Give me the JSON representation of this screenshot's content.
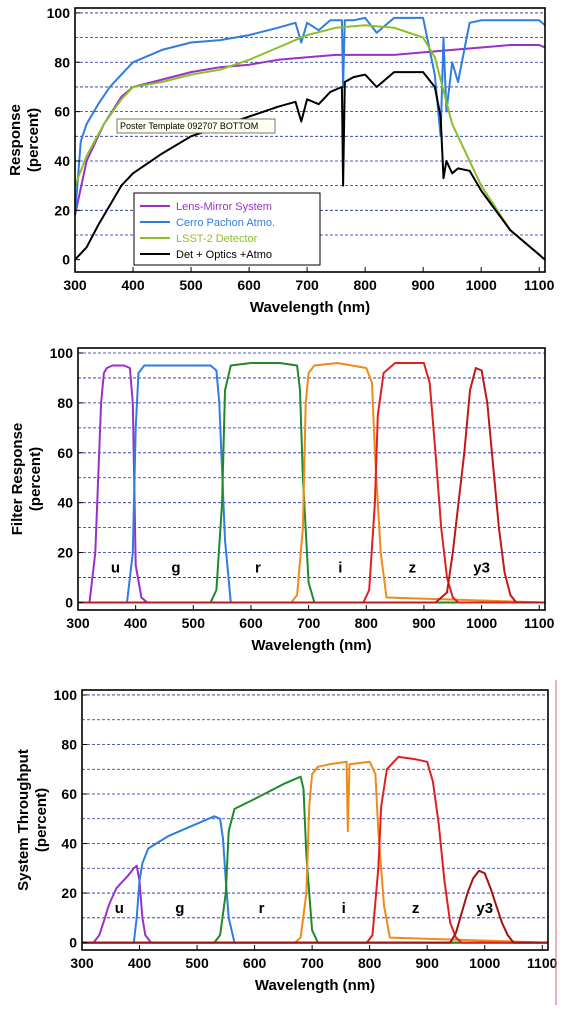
{
  "chart_data": [
    {
      "type": "line",
      "xlabel": "Wavelength (nm)",
      "ylabel_lines": [
        "Response",
        "(percent)"
      ],
      "xlim": [
        300,
        1110
      ],
      "ylim": [
        -5,
        102
      ],
      "xticks": [
        300,
        400,
        500,
        600,
        700,
        800,
        900,
        1000,
        1100
      ],
      "yticks": [
        0,
        20,
        40,
        60,
        80,
        100
      ],
      "tooltip": "Poster Template 092707 BOTTOM",
      "legend_position": "lower-left",
      "series": [
        {
          "name": "Lens-Mirror System",
          "color": "#9b30c8",
          "x": [
            300,
            320,
            350,
            380,
            400,
            450,
            500,
            550,
            600,
            650,
            700,
            750,
            800,
            850,
            900,
            950,
            1000,
            1050,
            1100,
            1110
          ],
          "y": [
            18,
            40,
            55,
            66,
            70,
            73,
            76,
            78,
            79,
            81,
            82,
            83,
            83,
            83,
            84,
            85,
            86,
            87,
            87,
            86
          ]
        },
        {
          "name": "Cerro Pachon Atmo.",
          "color": "#2f7de0",
          "x": [
            300,
            310,
            320,
            340,
            360,
            380,
            400,
            450,
            500,
            550,
            600,
            650,
            680,
            690,
            700,
            720,
            740,
            760,
            762,
            765,
            780,
            800,
            820,
            850,
            900,
            920,
            930,
            935,
            940,
            950,
            960,
            980,
            1000,
            1050,
            1100,
            1110
          ],
          "y": [
            18,
            48,
            55,
            63,
            70,
            75,
            80,
            85,
            88,
            89,
            91,
            94,
            96,
            88,
            96,
            93,
            97,
            97,
            70,
            97,
            97,
            98,
            92,
            98,
            98,
            75,
            50,
            90,
            60,
            80,
            72,
            96,
            97,
            97,
            97,
            95
          ]
        },
        {
          "name": "LSST-2 Detector",
          "color": "#8bbf2a",
          "x": [
            300,
            320,
            350,
            380,
            400,
            450,
            500,
            550,
            600,
            650,
            700,
            750,
            800,
            850,
            900,
            920,
            950,
            1000,
            1050,
            1100,
            1110
          ],
          "y": [
            30,
            42,
            55,
            65,
            70,
            72,
            75,
            77,
            81,
            86,
            91,
            94,
            95,
            94,
            90,
            82,
            55,
            30,
            12,
            2,
            0
          ]
        },
        {
          "name": "Det + Optics +Atmo",
          "color": "#000000",
          "x": [
            300,
            320,
            340,
            360,
            380,
            400,
            450,
            500,
            550,
            600,
            650,
            680,
            690,
            700,
            720,
            740,
            760,
            762,
            765,
            780,
            800,
            820,
            850,
            900,
            920,
            930,
            935,
            940,
            950,
            960,
            980,
            1000,
            1050,
            1100,
            1110
          ],
          "y": [
            0,
            5,
            14,
            22,
            30,
            35,
            43,
            50,
            54,
            58,
            62,
            64,
            56,
            65,
            63,
            68,
            70,
            30,
            72,
            74,
            75,
            70,
            76,
            76,
            70,
            58,
            33,
            40,
            35,
            37,
            36,
            28,
            12,
            2,
            0
          ]
        }
      ]
    },
    {
      "type": "line",
      "xlabel": "Wavelength (nm)",
      "ylabel_lines": [
        "Filter Response",
        "(percent)"
      ],
      "xlim": [
        300,
        1110
      ],
      "ylim": [
        -3,
        102
      ],
      "xticks": [
        300,
        400,
        500,
        600,
        700,
        800,
        900,
        1000,
        1100
      ],
      "yticks": [
        0,
        20,
        40,
        60,
        80,
        100
      ],
      "series": [
        {
          "name": "u",
          "color": "#9b30c8",
          "x": [
            300,
            320,
            330,
            340,
            345,
            350,
            360,
            380,
            390,
            395,
            400,
            410,
            420,
            1110
          ],
          "y": [
            0,
            0,
            20,
            80,
            92,
            94,
            95,
            95,
            94,
            80,
            15,
            2,
            0,
            0
          ]
        },
        {
          "name": "g",
          "color": "#2f7de0",
          "x": [
            300,
            385,
            395,
            400,
            405,
            415,
            450,
            500,
            530,
            540,
            545,
            555,
            565,
            1110
          ],
          "y": [
            0,
            0,
            20,
            70,
            92,
            95,
            95,
            95,
            95,
            93,
            80,
            25,
            0,
            0
          ]
        },
        {
          "name": "r",
          "color": "#1e8a2a",
          "x": [
            300,
            530,
            540,
            550,
            555,
            565,
            600,
            650,
            680,
            685,
            690,
            700,
            710,
            1110
          ],
          "y": [
            0,
            0,
            5,
            40,
            85,
            95,
            96,
            96,
            95,
            85,
            50,
            8,
            0,
            0
          ]
        },
        {
          "name": "i",
          "color": "#f08a1a",
          "x": [
            300,
            670,
            680,
            690,
            695,
            700,
            710,
            750,
            800,
            810,
            815,
            825,
            835,
            1110
          ],
          "y": [
            0,
            0,
            3,
            30,
            80,
            92,
            95,
            96,
            94,
            88,
            60,
            20,
            2,
            0
          ]
        },
        {
          "name": "z",
          "color": "#e02020",
          "x": [
            300,
            795,
            805,
            815,
            820,
            830,
            850,
            900,
            910,
            920,
            930,
            940,
            950,
            960,
            1110
          ],
          "y": [
            0,
            0,
            5,
            40,
            75,
            92,
            96,
            96,
            88,
            60,
            30,
            10,
            2,
            0,
            0
          ]
        },
        {
          "name": "y3",
          "color": "#c01818",
          "x": [
            300,
            920,
            940,
            950,
            960,
            970,
            980,
            990,
            1000,
            1010,
            1020,
            1030,
            1040,
            1050,
            1060,
            1110
          ],
          "y": [
            0,
            0,
            4,
            20,
            40,
            60,
            85,
            94,
            93,
            80,
            55,
            30,
            12,
            3,
            0,
            0
          ]
        }
      ],
      "band_labels": [
        {
          "text": "u",
          "x": 365,
          "y": 12
        },
        {
          "text": "g",
          "x": 470,
          "y": 12
        },
        {
          "text": "r",
          "x": 612,
          "y": 12
        },
        {
          "text": "i",
          "x": 755,
          "y": 12
        },
        {
          "text": "z",
          "x": 880,
          "y": 12
        },
        {
          "text": "y3",
          "x": 1000,
          "y": 12
        }
      ]
    },
    {
      "type": "line",
      "xlabel": "Wavelength (nm)",
      "ylabel_lines": [
        "System Throughput",
        "(percent)"
      ],
      "xlim": [
        300,
        1110
      ],
      "ylim": [
        -3,
        102
      ],
      "xticks": [
        300,
        400,
        500,
        600,
        700,
        800,
        900,
        1000,
        1100
      ],
      "yticks": [
        0,
        20,
        40,
        60,
        80,
        100
      ],
      "series": [
        {
          "name": "u",
          "color": "#9b30c8",
          "x": [
            300,
            320,
            330,
            340,
            345,
            350,
            360,
            380,
            390,
            395,
            400,
            405,
            410,
            420,
            1110
          ],
          "y": [
            0,
            0,
            3,
            10,
            14,
            17,
            22,
            27,
            30,
            31,
            25,
            10,
            3,
            0,
            0
          ]
        },
        {
          "name": "g",
          "color": "#2f7de0",
          "x": [
            300,
            390,
            395,
            400,
            405,
            415,
            450,
            500,
            530,
            540,
            545,
            550,
            555,
            565,
            1110
          ],
          "y": [
            0,
            0,
            10,
            25,
            32,
            38,
            43,
            48,
            51,
            50,
            42,
            25,
            10,
            0,
            0
          ]
        },
        {
          "name": "r",
          "color": "#1e8a2a",
          "x": [
            300,
            530,
            540,
            550,
            555,
            565,
            600,
            650,
            680,
            685,
            690,
            700,
            710,
            1110
          ],
          "y": [
            0,
            0,
            3,
            20,
            45,
            54,
            58,
            64,
            67,
            62,
            35,
            5,
            0,
            0
          ]
        },
        {
          "name": "i",
          "color": "#f08a1a",
          "x": [
            300,
            670,
            680,
            690,
            695,
            700,
            710,
            730,
            760,
            762,
            765,
            800,
            810,
            815,
            825,
            835,
            1110
          ],
          "y": [
            0,
            0,
            2,
            20,
            55,
            68,
            71,
            72,
            73,
            45,
            72,
            73,
            68,
            45,
            15,
            2,
            0
          ]
        },
        {
          "name": "z",
          "color": "#e02020",
          "x": [
            300,
            795,
            805,
            815,
            820,
            830,
            850,
            880,
            900,
            910,
            920,
            930,
            940,
            950,
            960,
            1110
          ],
          "y": [
            0,
            0,
            3,
            30,
            55,
            70,
            75,
            74,
            73,
            65,
            48,
            25,
            8,
            2,
            0,
            0
          ]
        },
        {
          "name": "y3",
          "color": "#a01414",
          "x": [
            300,
            940,
            950,
            960,
            970,
            980,
            990,
            1000,
            1010,
            1020,
            1030,
            1040,
            1050,
            1110
          ],
          "y": [
            0,
            0,
            4,
            12,
            20,
            26,
            29,
            28,
            22,
            15,
            8,
            3,
            0,
            0
          ]
        }
      ],
      "band_labels": [
        {
          "text": "u",
          "x": 365,
          "y": 12
        },
        {
          "text": "g",
          "x": 470,
          "y": 12
        },
        {
          "text": "r",
          "x": 612,
          "y": 12
        },
        {
          "text": "i",
          "x": 755,
          "y": 12
        },
        {
          "text": "z",
          "x": 880,
          "y": 12
        },
        {
          "text": "y3",
          "x": 1000,
          "y": 12
        }
      ]
    }
  ]
}
